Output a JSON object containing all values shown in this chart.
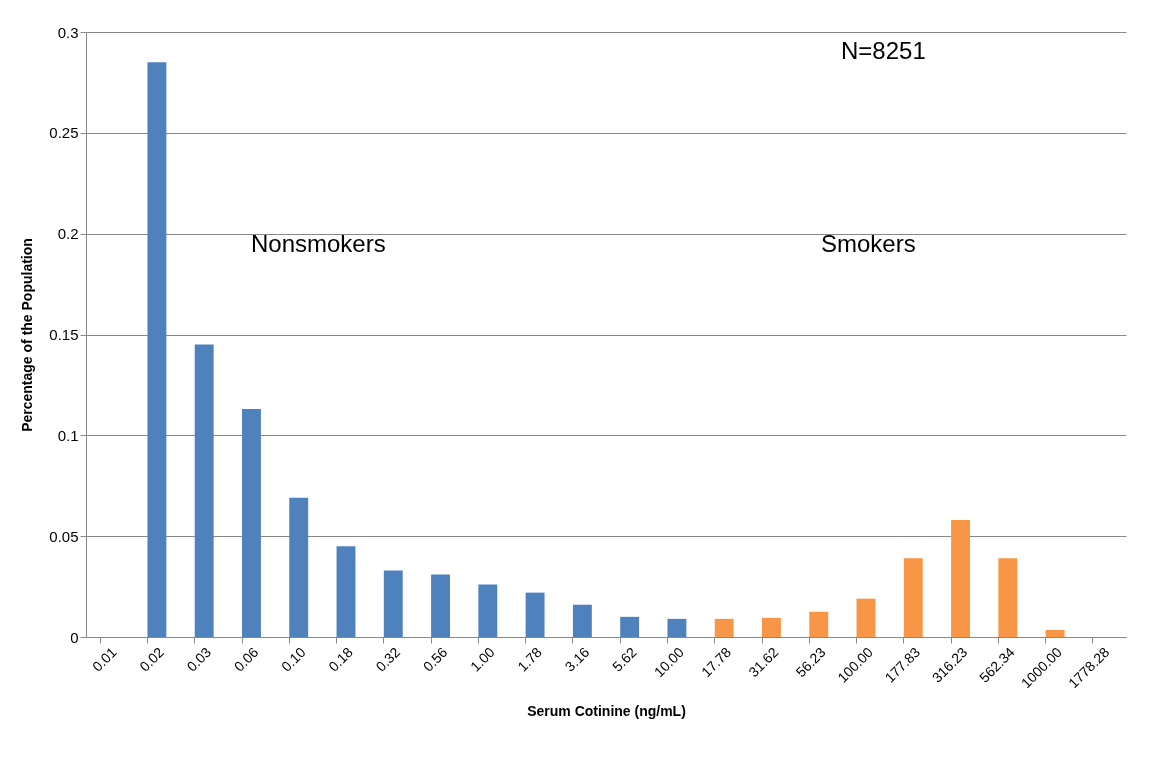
{
  "chart_data": {
    "type": "bar",
    "xlabel": "Serum Cotinine (ng/mL)",
    "ylabel": "Percentage of the Population",
    "categories": [
      "0.01",
      "0.02",
      "0.03",
      "0.06",
      "0.10",
      "0.18",
      "0.32",
      "0.56",
      "1.00",
      "1.78",
      "3.16",
      "5.62",
      "10.00",
      "17.78",
      "31.62",
      "56.23",
      "100.00",
      "177.83",
      "316.23",
      "562.34",
      "1000.00",
      "1778.28"
    ],
    "values": [
      0,
      0.285,
      0.145,
      0.113,
      0.069,
      0.045,
      0.033,
      0.031,
      0.026,
      0.022,
      0.016,
      0.01,
      0.009,
      0.009,
      0.0095,
      0.0125,
      0.019,
      0.039,
      0.058,
      0.039,
      0.0035,
      0
    ],
    "colors": [
      "#4f81bd",
      "#4f81bd",
      "#4f81bd",
      "#4f81bd",
      "#4f81bd",
      "#4f81bd",
      "#4f81bd",
      "#4f81bd",
      "#4f81bd",
      "#4f81bd",
      "#4f81bd",
      "#4f81bd",
      "#4f81bd",
      "#f79646",
      "#f79646",
      "#f79646",
      "#f79646",
      "#f79646",
      "#f79646",
      "#f79646",
      "#f79646",
      "#f79646"
    ],
    "ylim": [
      0,
      0.3
    ],
    "yticks": [
      0,
      0.05,
      0.1,
      0.15,
      0.2,
      0.25,
      0.3
    ],
    "grid": "y",
    "annotations": [
      "Nonsmokers",
      "Smokers",
      "N=8251"
    ]
  }
}
